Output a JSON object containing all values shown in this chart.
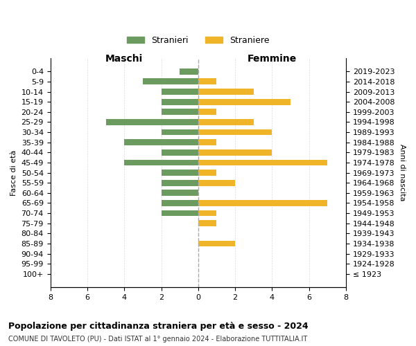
{
  "age_groups": [
    "100+",
    "95-99",
    "90-94",
    "85-89",
    "80-84",
    "75-79",
    "70-74",
    "65-69",
    "60-64",
    "55-59",
    "50-54",
    "45-49",
    "40-44",
    "35-39",
    "30-34",
    "25-29",
    "20-24",
    "15-19",
    "10-14",
    "5-9",
    "0-4"
  ],
  "birth_years": [
    "≤ 1923",
    "1924-1928",
    "1929-1933",
    "1934-1938",
    "1939-1943",
    "1944-1948",
    "1949-1953",
    "1954-1958",
    "1959-1963",
    "1964-1968",
    "1969-1973",
    "1974-1978",
    "1979-1983",
    "1984-1988",
    "1989-1993",
    "1994-1998",
    "1999-2003",
    "2004-2008",
    "2009-2013",
    "2014-2018",
    "2019-2023"
  ],
  "maschi": [
    0,
    0,
    0,
    0,
    0,
    0,
    2,
    2,
    2,
    2,
    2,
    4,
    2,
    4,
    2,
    5,
    2,
    2,
    2,
    3,
    1
  ],
  "femmine": [
    0,
    0,
    0,
    2,
    0,
    1,
    1,
    7,
    0,
    2,
    1,
    7,
    4,
    1,
    4,
    3,
    1,
    5,
    3,
    1,
    0
  ],
  "maschi_color": "#6b9b5e",
  "femmine_color": "#f0b429",
  "title": "Popolazione per cittadinanza straniera per età e sesso - 2024",
  "subtitle": "COMUNE DI TAVOLETO (PU) - Dati ISTAT al 1° gennaio 2024 - Elaborazione TUTTITALIA.IT",
  "xlabel_left": "Maschi",
  "xlabel_right": "Femmine",
  "ylabel_left": "Fasce di età",
  "ylabel_right": "Anni di nascita",
  "legend_maschi": "Stranieri",
  "legend_femmine": "Straniere",
  "xlim": 8,
  "background_color": "#ffffff",
  "grid_color": "#cccccc"
}
